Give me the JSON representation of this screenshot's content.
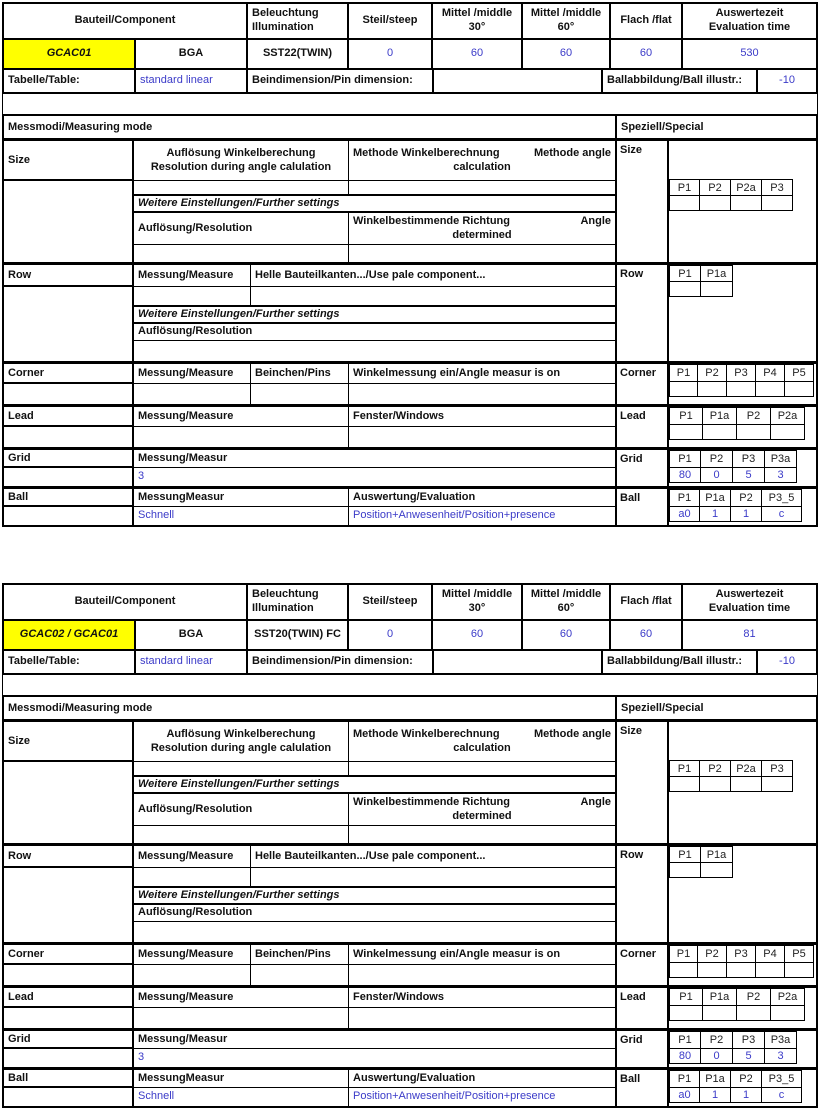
{
  "colors": {
    "value_text": "#3b3bc8",
    "highlight": "#ffff00",
    "border": "#000000"
  },
  "shared": {
    "header": {
      "component": "Bauteil/Component",
      "illumination_l1": "Beleuchtung",
      "illumination_l2": "Illumination",
      "steep": "Steil/steep",
      "middle30_l1": "Mittel /middle",
      "middle30_l2": "30°",
      "middle60_l1": "Mittel /middle",
      "middle60_l2": "60°",
      "flat": "Flach /flat",
      "eval_l1": "Auswertezeit",
      "eval_l2": "Evaluation time",
      "table_label": "Tabelle/Table:",
      "pin_dim_label": "Beindimension/Pin dimension:",
      "ball_illustr_label": "Ballabbildung/Ball illustr.:"
    },
    "messmodi": "Messmodi/Measuring mode",
    "speziell": "Speziell/Special",
    "weitere": "Weitere Einstellungen/Further settings",
    "aufloesung": "Auflösung/Resolution",
    "size": {
      "label": "Size",
      "res_l1": "Auflösung Winkelberechung",
      "res_l2": "Resolution during angle calulation",
      "methode_l1a": "Methode Winkelberechnung",
      "methode_l1b": "Methode angle",
      "methode_l2": "calculation",
      "dir_l1a": "Winkelbestimmende Richtung",
      "dir_l1b": "Angle",
      "dir_l2": "determined",
      "p": [
        "P1",
        "P2",
        "P2a",
        "P3"
      ],
      "pv": [
        "",
        "",
        "",
        ""
      ]
    },
    "row": {
      "label": "Row",
      "measure": "Messung/Measure",
      "desc": "Helle Bauteilkanten.../Use pale component...",
      "p": [
        "P1",
        "P1a"
      ],
      "pv": [
        "",
        ""
      ]
    },
    "corner": {
      "label": "Corner",
      "measure": "Messung/Measure",
      "pins": "Beinchen/Pins",
      "desc": "Winkelmessung ein/Angle measur is on",
      "p": [
        "P1",
        "P2",
        "P3",
        "P4",
        "P5"
      ],
      "pv": [
        "",
        "",
        "",
        "",
        ""
      ]
    },
    "lead": {
      "label": "Lead",
      "measure": "Messung/Measure",
      "desc": "Fenster/Windows",
      "p": [
        "P1",
        "P1a",
        "P2",
        "P2a"
      ],
      "pv": [
        "",
        "",
        "",
        ""
      ]
    },
    "grid": {
      "label": "Grid",
      "measure": "Messung/Measur",
      "value": "3",
      "p": [
        "P1",
        "P2",
        "P3",
        "P3a"
      ],
      "pv": [
        "80",
        "0",
        "5",
        "3"
      ]
    },
    "ball": {
      "label": "Ball",
      "measure": "MessungMeasur",
      "evaluation": "Auswertung/Evaluation",
      "measure_value": "Schnell",
      "evaluation_value": "Position+Anwesenheit/Position+presence",
      "p": [
        "P1",
        "P1a",
        "P2",
        "P3_5"
      ],
      "pv": [
        "a0",
        "1",
        "1",
        "c"
      ]
    }
  },
  "tables": [
    {
      "component_name": "GCAC01",
      "component_type": "BGA",
      "illumination": "SST22(TWIN)",
      "steep": "0",
      "middle30": "60",
      "middle60": "60",
      "flat": "60",
      "eval_time": "530",
      "table_value": "standard linear",
      "pin_dimension_value": "",
      "ball_illustr_value": "-10"
    },
    {
      "component_name": "GCAC02 / GCAC01",
      "component_type": "BGA",
      "illumination": "SST20(TWIN) FC",
      "steep": "0",
      "middle30": "60",
      "middle60": "60",
      "flat": "60",
      "eval_time": "81",
      "table_value": "standard linear",
      "pin_dimension_value": "",
      "ball_illustr_value": "-10"
    }
  ]
}
